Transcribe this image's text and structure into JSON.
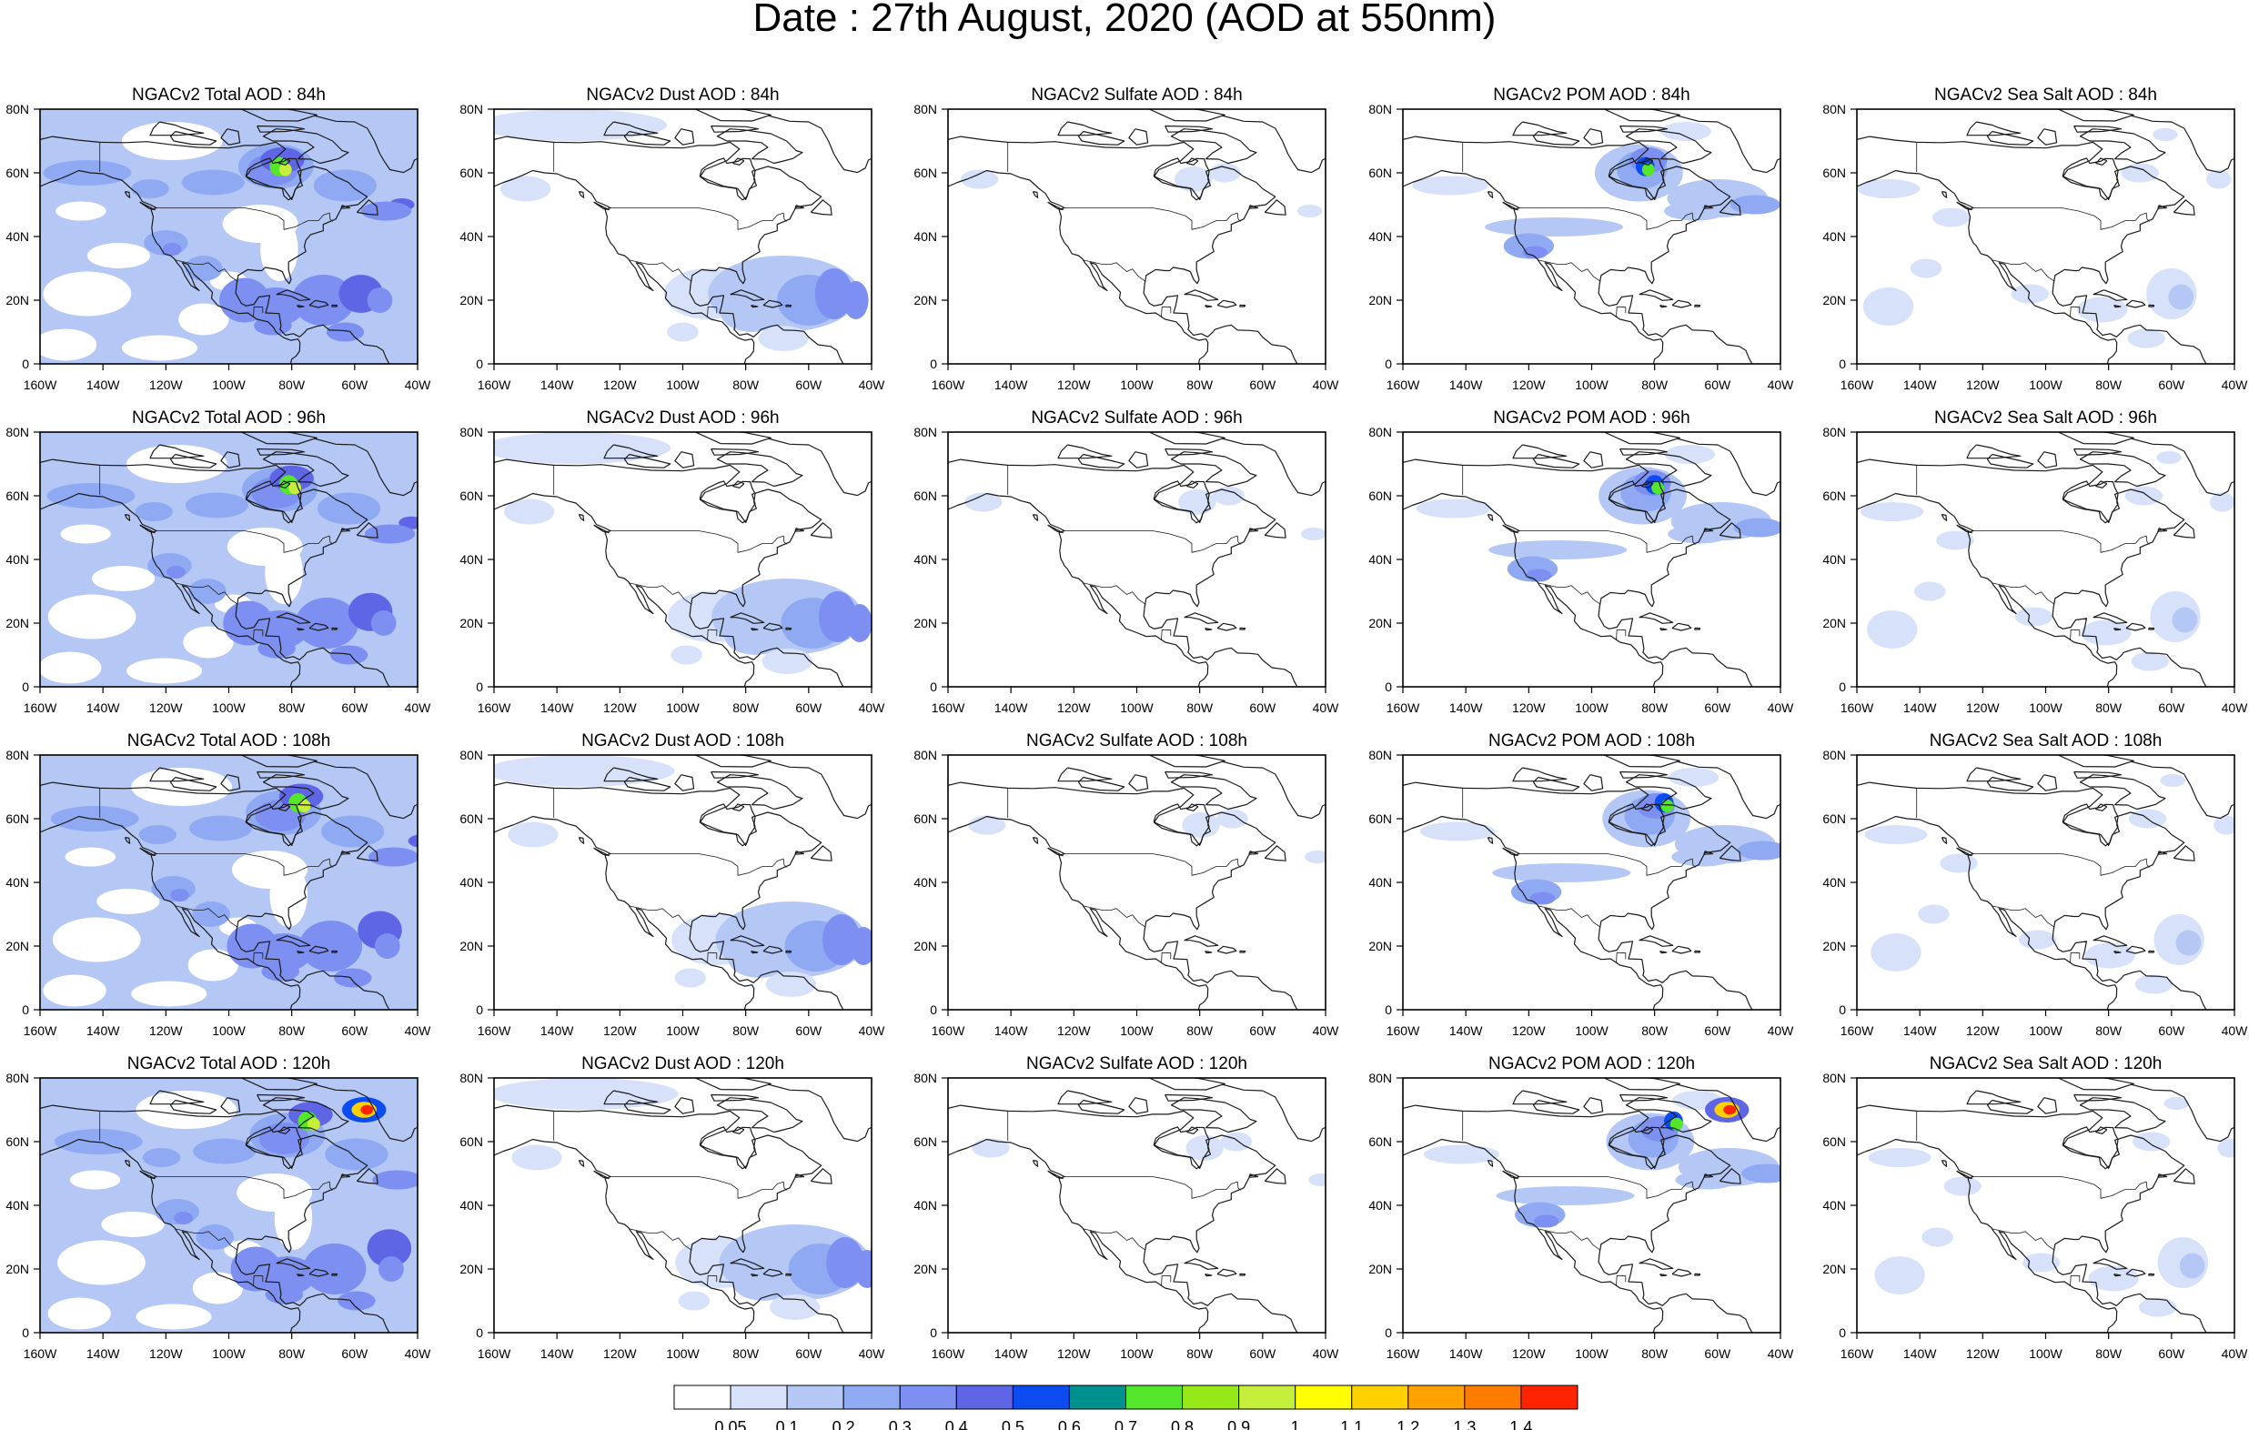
{
  "figure_title": "Date : 27th August, 2020 (AOD at 550nm)",
  "colors": {
    "coastline": "#1a1a1a",
    "frame": "#000000",
    "levels": [
      "#ffffff",
      "#d7e2fa",
      "#b4c7f5",
      "#8faaf3",
      "#7d8ff0",
      "#5f66e6",
      "#0a4cf0",
      "#00908e",
      "#54e62a",
      "#97e818",
      "#c5ef3a",
      "#ffff00",
      "#ffd000",
      "#ffa200",
      "#ff7c00",
      "#ff2400"
    ]
  },
  "colorbar": {
    "labels": [
      "0.05",
      "0.1",
      "0.2",
      "0.3",
      "0.4",
      "0.5",
      "0.6",
      "0.7",
      "0.8",
      "0.9",
      "1",
      "1.1",
      "1.2",
      "1.3",
      "1.4"
    ]
  },
  "axes": {
    "lon_labels": [
      "160W",
      "140W",
      "120W",
      "100W",
      "80W",
      "60W",
      "40W"
    ],
    "lat_labels": [
      "80N",
      "60N",
      "40N",
      "20N",
      "0"
    ]
  },
  "panels": [
    {
      "title": "NGACv2 Total AOD : 84h",
      "species": "total",
      "hour": 84
    },
    {
      "title": "NGACv2 Dust AOD : 84h",
      "species": "dust",
      "hour": 84
    },
    {
      "title": "NGACv2 Sulfate AOD : 84h",
      "species": "sulfate",
      "hour": 84
    },
    {
      "title": "NGACv2 POM AOD : 84h",
      "species": "pom",
      "hour": 84
    },
    {
      "title": "NGACv2 Sea Salt AOD : 84h",
      "species": "seasalt",
      "hour": 84
    },
    {
      "title": "NGACv2 Total AOD : 96h",
      "species": "total",
      "hour": 96
    },
    {
      "title": "NGACv2 Dust AOD : 96h",
      "species": "dust",
      "hour": 96
    },
    {
      "title": "NGACv2 Sulfate AOD : 96h",
      "species": "sulfate",
      "hour": 96
    },
    {
      "title": "NGACv2 POM AOD : 96h",
      "species": "pom",
      "hour": 96
    },
    {
      "title": "NGACv2 Sea Salt AOD : 96h",
      "species": "seasalt",
      "hour": 96
    },
    {
      "title": "NGACv2 Total AOD : 108h",
      "species": "total",
      "hour": 108
    },
    {
      "title": "NGACv2 Dust AOD : 108h",
      "species": "dust",
      "hour": 108
    },
    {
      "title": "NGACv2 Sulfate AOD : 108h",
      "species": "sulfate",
      "hour": 108
    },
    {
      "title": "NGACv2 POM AOD : 108h",
      "species": "pom",
      "hour": 108
    },
    {
      "title": "NGACv2 Sea Salt AOD : 108h",
      "species": "seasalt",
      "hour": 108
    },
    {
      "title": "NGACv2 Total AOD : 120h",
      "species": "total",
      "hour": 120
    },
    {
      "title": "NGACv2 Dust AOD : 120h",
      "species": "dust",
      "hour": 120
    },
    {
      "title": "NGACv2 Sulfate AOD : 120h",
      "species": "sulfate",
      "hour": 120
    },
    {
      "title": "NGACv2 POM AOD : 120h",
      "species": "pom",
      "hour": 120
    },
    {
      "title": "NGACv2 Sea Salt  AOD : 120h",
      "species": "seasalt",
      "hour": 120
    }
  ]
}
